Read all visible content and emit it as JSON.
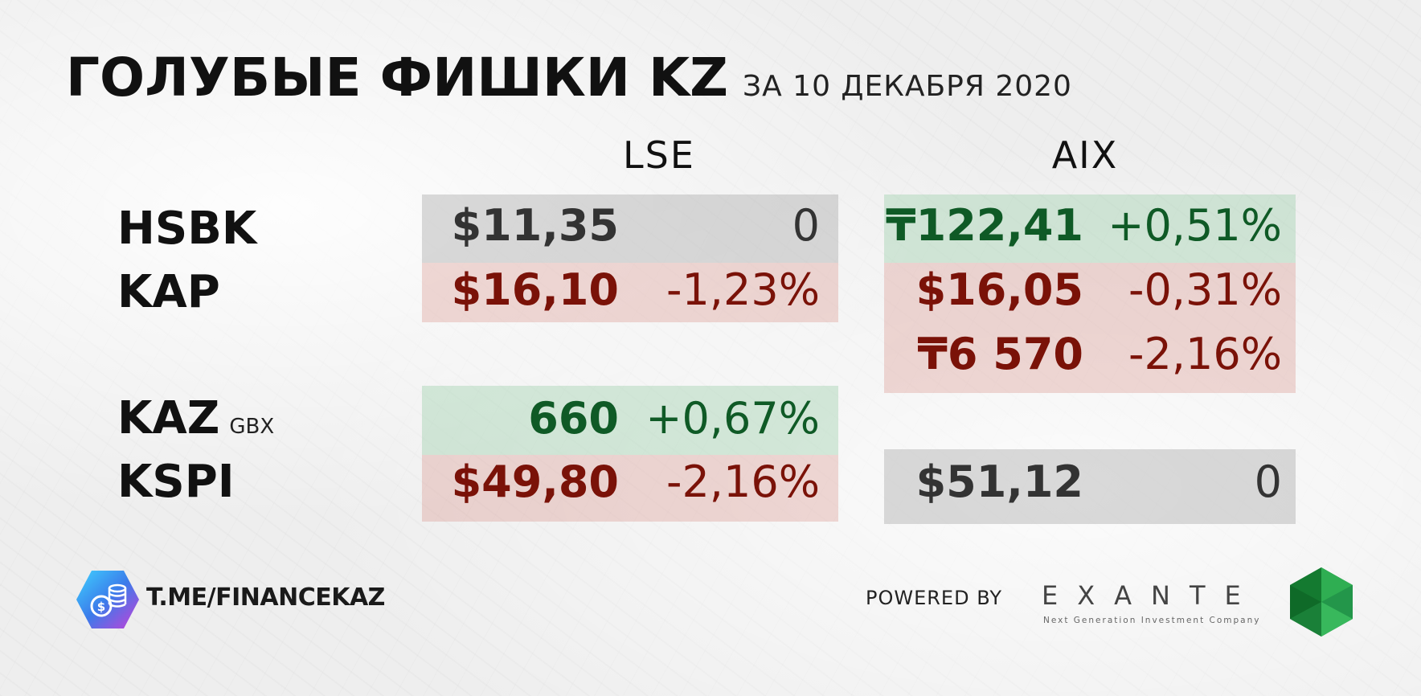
{
  "header": {
    "title": "ГОЛУБЫЕ ФИШКИ KZ",
    "subtitle": "ЗА 10 ДЕКАБРЯ 2020"
  },
  "exchanges": {
    "lse": "LSE",
    "aix": "AIX"
  },
  "tickers": {
    "hsbk": "HSBK",
    "kap": "KAP",
    "kaz": "KAZ",
    "kaz_unit": "GBX",
    "kspi": "KSPI"
  },
  "lse": {
    "hsbk": {
      "price": "$11,35",
      "change": "0"
    },
    "kap": {
      "price": "$16,10",
      "change": "-1,23%"
    },
    "kaz": {
      "price": "660",
      "change": "+0,67%"
    },
    "kspi": {
      "price": "$49,80",
      "change": "-2,16%"
    }
  },
  "aix": {
    "hsbk": {
      "price": "₸122,41",
      "change": "+0,51%"
    },
    "kap": {
      "price": "$16,05",
      "change": "-0,31%"
    },
    "kap_kzt": {
      "price": "₸6 570",
      "change": "-2,16%"
    },
    "kspi": {
      "price": "$51,12",
      "change": "0"
    }
  },
  "footer": {
    "channel": "T.ME/FINANCEKAZ",
    "powered_by": "POWERED BY",
    "brand": "EXANTE",
    "brand_tagline": "Next Generation Investment Company"
  },
  "colors": {
    "positive": "#0f5a26",
    "negative": "#7a1208",
    "neutral": "#333333",
    "positive_bg": "#d2e6d6",
    "negative_bg": "#ecd0cc",
    "neutral_bg": "#cfcfcf"
  }
}
